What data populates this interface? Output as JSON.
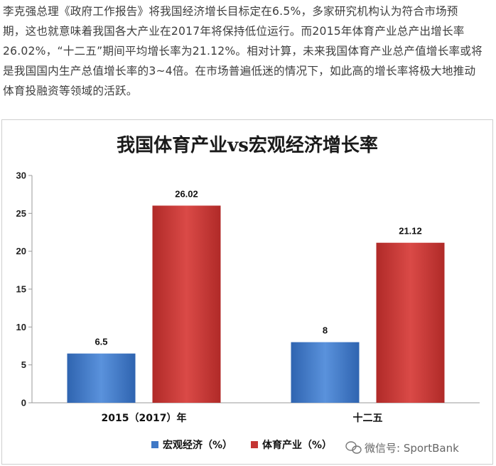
{
  "article": {
    "lines": [
      "李克强总理《政府工作报告》将我国经济增长目标定在6.5%，多家研究机构认为符合市场预",
      "期，这也就意味着我国各大产业在2017年将保持低位运行。而2015年体育产业总产出增长率",
      "26.02%，“十二五”期间平均增长率为21.12%。相对计算，未来我国体育产业总产值增长率或将",
      "是我国国内生产总值增长率的3~4倍。在市场普遍低迷的情况下，如此高的增长率将极大地推动",
      "体育投融资等领域的活跃。"
    ]
  },
  "watermark": "微信号: SportBank",
  "chart_data": {
    "type": "bar",
    "title": "我国体育产业vs宏观经济增长率",
    "categories": [
      "2015（2017）年",
      "十二五"
    ],
    "series": [
      {
        "name": "宏观经济（%）",
        "values": [
          6.5,
          8
        ],
        "labels": [
          "6.5",
          "8"
        ],
        "color": "#3f78c6"
      },
      {
        "name": "体育产业（%）",
        "values": [
          26.02,
          21.12
        ],
        "labels": [
          "26.02",
          "21.12"
        ],
        "color": "#c43533"
      }
    ],
    "ylim": [
      0,
      30
    ],
    "yticks": [
      0,
      5,
      10,
      15,
      20,
      25,
      30
    ],
    "grid": false,
    "legend": "bottom-left",
    "xlabel": "",
    "ylabel": ""
  }
}
